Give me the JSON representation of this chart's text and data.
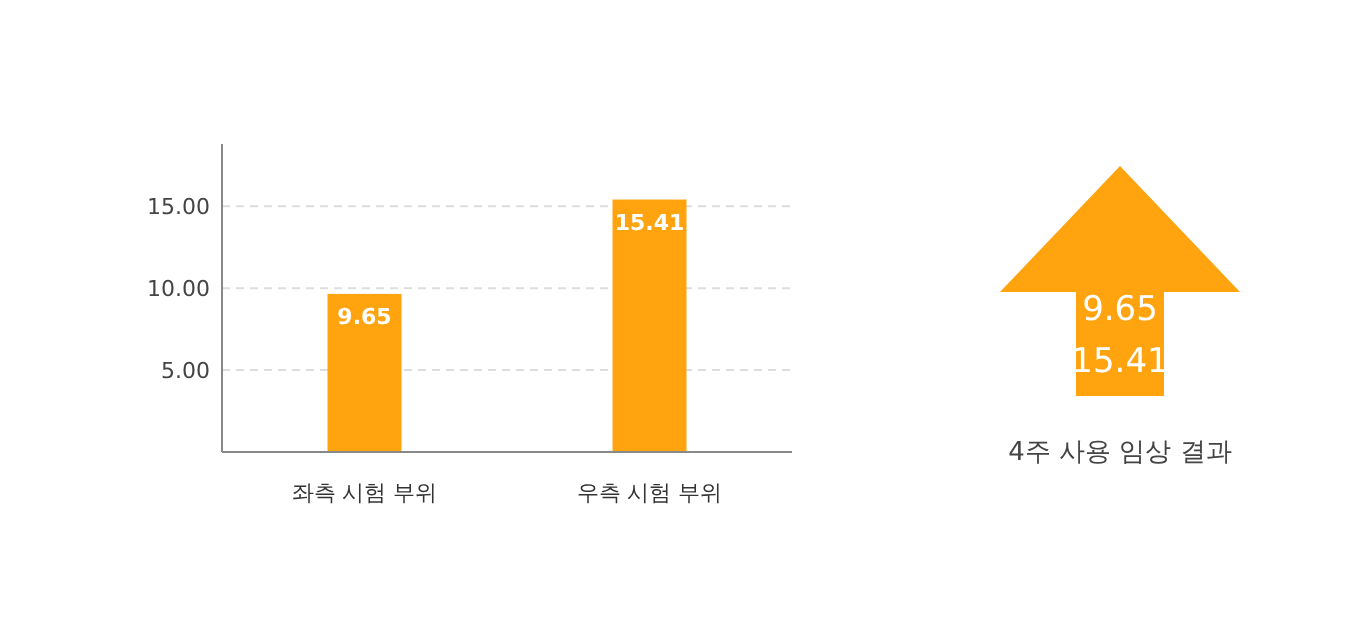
{
  "chart_data": [
    {
      "type": "bar",
      "categories": [
        "좌측 시험 부위",
        "우측 시험 부위"
      ],
      "values": [
        9.65,
        15.41
      ],
      "color": "#ffa30f",
      "ylim": [
        0,
        18.8
      ],
      "yticks": [
        {
          "value": 5,
          "label": "5.00"
        },
        {
          "value": 10,
          "label": "10.00"
        },
        {
          "value": 15,
          "label": "15.00"
        }
      ],
      "grid": "y",
      "data_labels": true
    },
    {
      "type": "other",
      "annotations": [
        "9.65",
        "15.41",
        "4주 사용 임상 결과"
      ]
    }
  ]
}
